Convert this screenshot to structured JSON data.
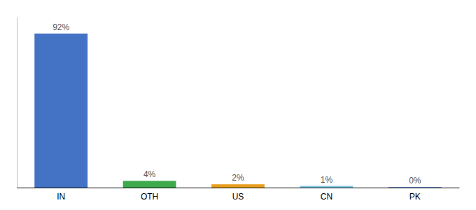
{
  "chart_data": {
    "type": "bar",
    "categories": [
      "IN",
      "OTH",
      "US",
      "CN",
      "PK"
    ],
    "values": [
      92,
      4,
      2,
      1,
      0.3
    ],
    "value_labels": [
      "92%",
      "4%",
      "2%",
      "1%",
      "0%"
    ],
    "colors": [
      "#4472c4",
      "#3daa4c",
      "#e8a020",
      "#7ec8e3",
      "#4472c4"
    ],
    "ylim": [
      0,
      102
    ],
    "data_labels": true,
    "tick_labels": "x",
    "grid": false
  }
}
